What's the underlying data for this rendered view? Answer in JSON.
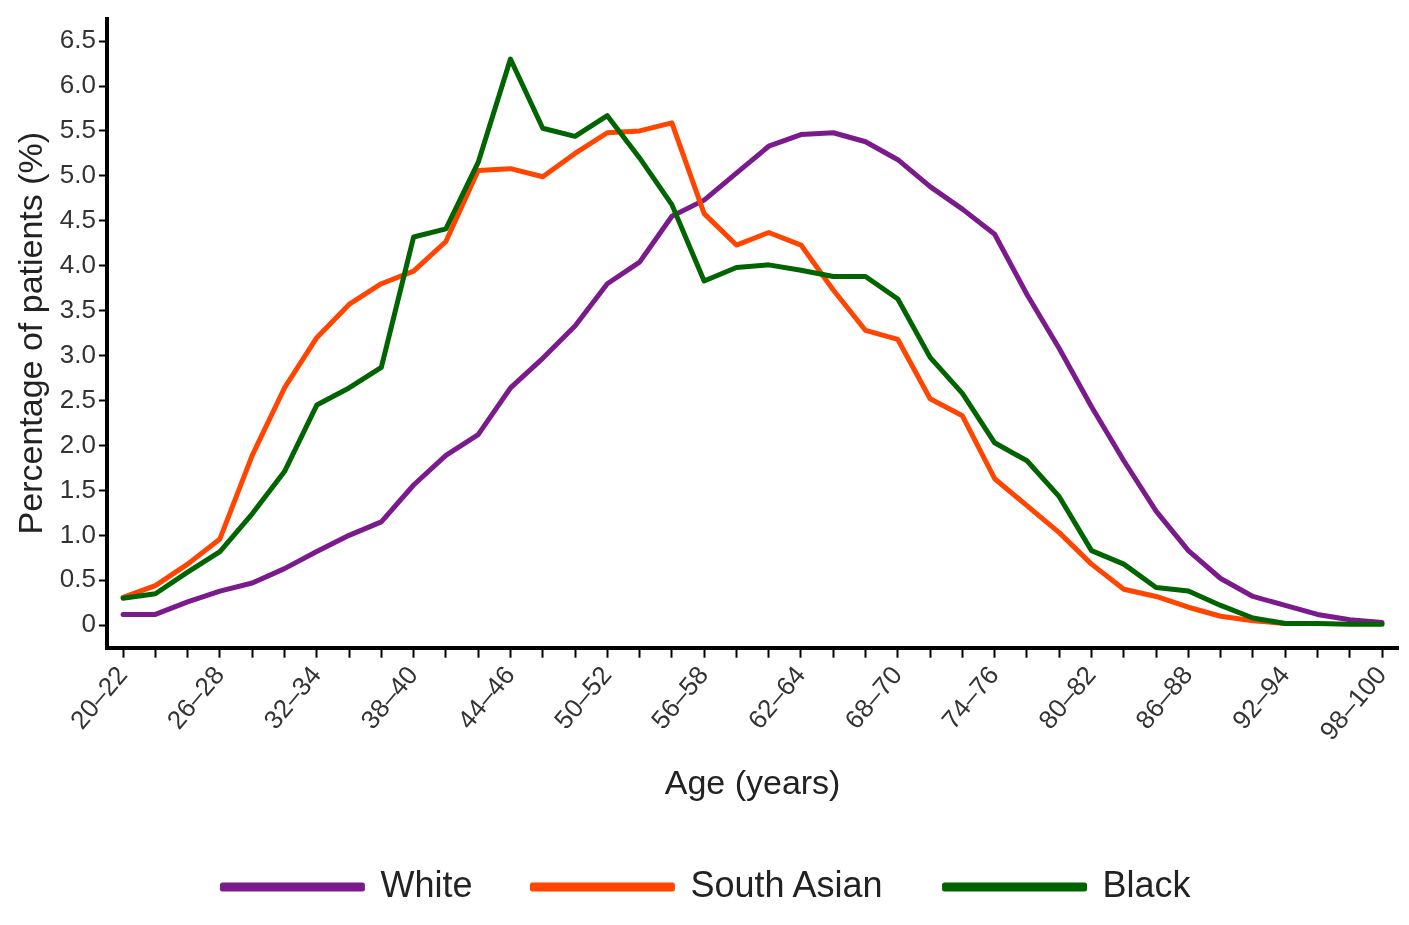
{
  "chart_data": {
    "type": "line",
    "xlabel": "Age (years)",
    "ylabel": "Percentage of patients (%)",
    "categories": [
      "20–22",
      null,
      null,
      "26–28",
      null,
      null,
      "32–34",
      null,
      null,
      "38–40",
      null,
      null,
      "44–46",
      null,
      null,
      "50–52",
      null,
      null,
      "56–58",
      null,
      null,
      "62–64",
      null,
      null,
      "68–70",
      null,
      null,
      "74–76",
      null,
      null,
      "80–82",
      null,
      null,
      "86–88",
      null,
      null,
      "92–94",
      null,
      null,
      "98–100"
    ],
    "series": [
      {
        "name": "White",
        "color": "#7b1a8c",
        "values": [
          0.12,
          0.12,
          0.26,
          0.38,
          0.47,
          0.63,
          0.82,
          1.0,
          1.15,
          1.56,
          1.89,
          2.12,
          2.64,
          2.97,
          3.33,
          3.8,
          4.04,
          4.55,
          4.73,
          5.03,
          5.33,
          5.46,
          5.48,
          5.38,
          5.18,
          4.88,
          4.63,
          4.35,
          3.68,
          3.08,
          2.43,
          1.83,
          1.27,
          0.83,
          0.52,
          0.32,
          0.22,
          0.12,
          0.06,
          0.03
        ]
      },
      {
        "name": "South Asian",
        "color": "#ff4500",
        "values": [
          0.31,
          0.44,
          0.68,
          0.96,
          1.89,
          2.64,
          3.2,
          3.57,
          3.8,
          3.94,
          4.27,
          5.06,
          5.08,
          4.99,
          5.25,
          5.48,
          5.5,
          5.59,
          4.58,
          4.23,
          4.37,
          4.23,
          3.73,
          3.28,
          3.18,
          2.52,
          2.33,
          1.63,
          1.33,
          1.03,
          0.68,
          0.4,
          0.32,
          0.2,
          0.1,
          0.05,
          0.02,
          null,
          null,
          null
        ]
      },
      {
        "name": "Black",
        "color": "#006400",
        "values": [
          0.3,
          0.35,
          0.59,
          0.82,
          1.24,
          1.71,
          2.45,
          2.64,
          2.87,
          4.32,
          4.41,
          5.15,
          6.3,
          5.53,
          5.44,
          5.67,
          5.2,
          4.68,
          3.83,
          3.98,
          4.01,
          3.95,
          3.88,
          3.88,
          3.63,
          2.98,
          2.58,
          2.03,
          1.83,
          1.43,
          0.83,
          0.68,
          0.42,
          0.38,
          0.22,
          0.08,
          0.02,
          0.02,
          0.01,
          0.01
        ]
      }
    ],
    "ylim": [
      -0.25,
      6.75
    ],
    "yticks": [
      0,
      {
        "value": 0.5,
        "label": "0.5"
      },
      {
        "value": 1,
        "label": "1.0"
      },
      {
        "value": 1.5,
        "label": "1.5"
      },
      {
        "value": 2,
        "label": "2.0"
      },
      {
        "value": 2.5,
        "label": "2.5"
      },
      {
        "value": 3,
        "label": "3.0"
      },
      {
        "value": 3.5,
        "label": "3.5"
      },
      {
        "value": 4,
        "label": "4.0"
      },
      {
        "value": 4.5,
        "label": "4.5"
      },
      {
        "value": 5,
        "label": "5.0"
      },
      {
        "value": 5.5,
        "label": "5.5"
      },
      {
        "value": 6,
        "label": "6.0"
      },
      {
        "value": 6.5,
        "label": "6.5"
      }
    ],
    "grid": false,
    "legend": "bottom",
    "marker": "none",
    "line_style": "solid"
  }
}
